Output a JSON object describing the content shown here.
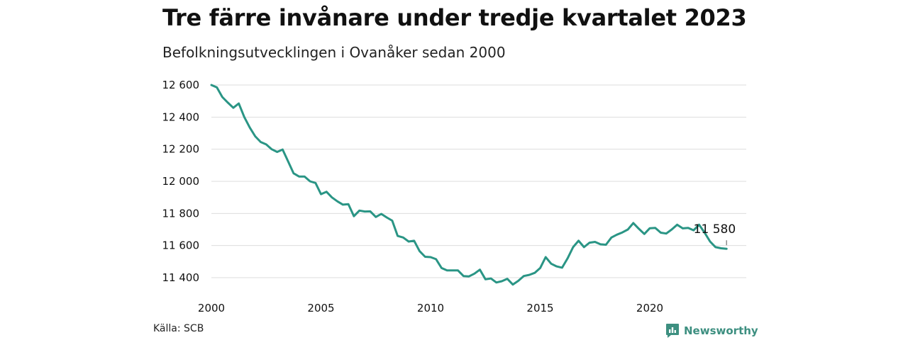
{
  "header": {
    "title": "Tre färre invånare under tredje kvartalet 2023",
    "subtitle": "Befolkningsutvecklingen i Ovanåker sedan 2000"
  },
  "footer": {
    "source": "Källa: SCB",
    "brand": "Newsworthy"
  },
  "colors": {
    "line": "#2a9585",
    "grid": "#dddddd",
    "brand": "#3d8f80"
  },
  "chart_data": {
    "type": "line",
    "x_ticks": [
      "2000",
      "2005",
      "2010",
      "2015",
      "2020"
    ],
    "y_ticks": [
      "12 600",
      "12 400",
      "12 200",
      "12 000",
      "11 800",
      "11 600",
      "11 400"
    ],
    "ylim": [
      11350,
      12650
    ],
    "xlim": [
      2000,
      2024
    ],
    "grid": true,
    "end_label": "11 580",
    "series": [
      {
        "x": [
          2000.0,
          2000.25,
          2000.5,
          2000.75,
          2001.0,
          2001.25,
          2001.5,
          2001.75,
          2002.0,
          2002.25,
          2002.5,
          2002.75,
          2003.0,
          2003.25,
          2003.5,
          2003.75,
          2004.0,
          2004.25,
          2004.5,
          2004.75,
          2005.0,
          2005.25,
          2005.5,
          2005.75,
          2006.0,
          2006.25,
          2006.5,
          2006.75,
          2007.0,
          2007.25,
          2007.5,
          2007.75,
          2008.0,
          2008.25,
          2008.5,
          2008.75,
          2009.0,
          2009.25,
          2009.5,
          2009.75,
          2010.0,
          2010.25,
          2010.5,
          2010.75,
          2011.0,
          2011.25,
          2011.5,
          2011.75,
          2012.0,
          2012.25,
          2012.5,
          2012.75,
          2013.0,
          2013.25,
          2013.5,
          2013.75,
          2014.0,
          2014.25,
          2014.5,
          2014.75,
          2015.0,
          2015.25,
          2015.5,
          2015.75,
          2016.0,
          2016.25,
          2016.5,
          2016.75,
          2017.0,
          2017.25,
          2017.5,
          2017.75,
          2018.0,
          2018.25,
          2018.5,
          2018.75,
          2019.0,
          2019.25,
          2019.5,
          2019.75,
          2020.0,
          2020.25,
          2020.5,
          2020.75,
          2021.0,
          2021.25,
          2021.5,
          2021.75,
          2022.0,
          2022.25,
          2022.5,
          2022.75,
          2023.0,
          2023.25,
          2023.5
        ],
        "values": [
          12600,
          12585,
          12525,
          12490,
          12458,
          12485,
          12400,
          12335,
          12280,
          12245,
          12230,
          12200,
          12183,
          12198,
          12125,
          12050,
          12030,
          12030,
          12000,
          11990,
          11920,
          11935,
          11900,
          11875,
          11855,
          11858,
          11783,
          11818,
          11812,
          11813,
          11778,
          11797,
          11775,
          11755,
          11660,
          11650,
          11625,
          11630,
          11565,
          11530,
          11528,
          11515,
          11460,
          11445,
          11445,
          11445,
          11410,
          11408,
          11425,
          11450,
          11390,
          11395,
          11370,
          11378,
          11393,
          11357,
          11380,
          11410,
          11417,
          11430,
          11460,
          11528,
          11487,
          11470,
          11462,
          11520,
          11590,
          11630,
          11590,
          11618,
          11623,
          11608,
          11605,
          11650,
          11668,
          11682,
          11700,
          11740,
          11705,
          11672,
          11708,
          11710,
          11680,
          11675,
          11700,
          11730,
          11707,
          11710,
          11695,
          11730,
          11680,
          11625,
          11590,
          11583,
          11580
        ]
      }
    ]
  }
}
